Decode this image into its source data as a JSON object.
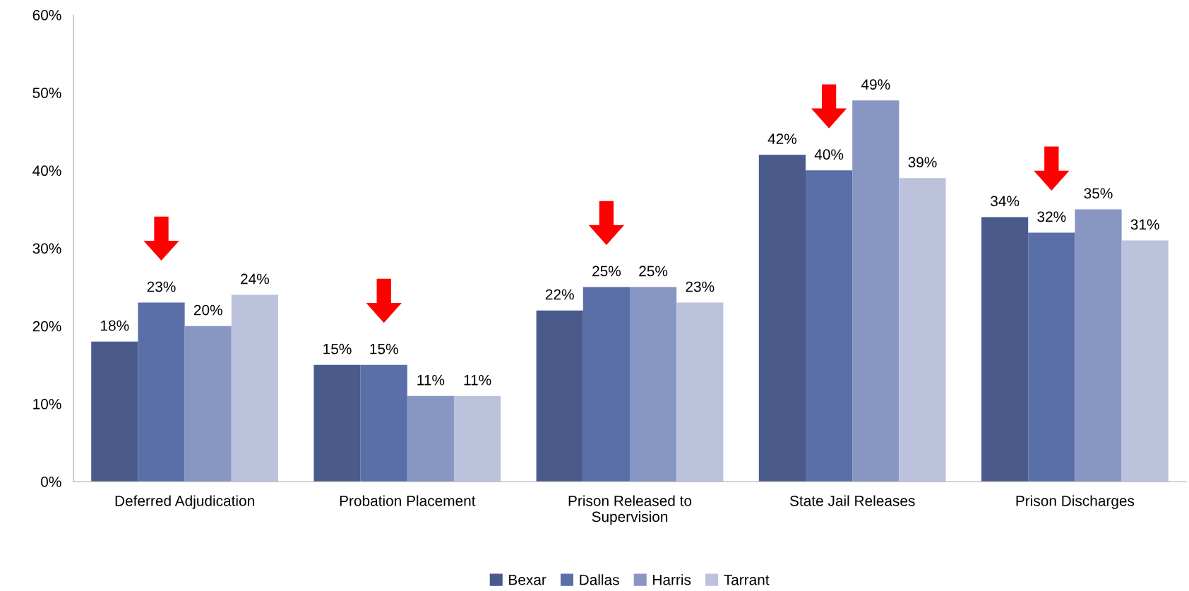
{
  "chart_data": {
    "type": "bar",
    "categories": [
      "Deferred Adjudication",
      "Probation Placement",
      "Prison Released to\nSupervision",
      "State Jail Releases",
      "Prison Discharges"
    ],
    "series": [
      {
        "name": "Bexar",
        "color": "#4a5a8a",
        "values": [
          18,
          15,
          22,
          42,
          34
        ],
        "value_labels": [
          "18%",
          "15%",
          "22%",
          "42%",
          "34%"
        ]
      },
      {
        "name": "Dallas",
        "color": "#5a6ea8",
        "values": [
          23,
          15,
          25,
          40,
          32
        ],
        "value_labels": [
          "23%",
          "15%",
          "25%",
          "40%",
          "32%"
        ]
      },
      {
        "name": "Harris",
        "color": "#8896c4",
        "values": [
          20,
          11,
          25,
          49,
          35
        ],
        "value_labels": [
          "20%",
          "11%",
          "25%",
          "49%",
          "35%"
        ]
      },
      {
        "name": "Tarrant",
        "color": "#bcc2dc",
        "values": [
          24,
          11,
          23,
          39,
          31
        ],
        "value_labels": [
          "24%",
          "11%",
          "23%",
          "39%",
          "31%"
        ]
      }
    ],
    "ylim": [
      0,
      60
    ],
    "yticks": [
      {
        "value": 0,
        "label": "0%"
      },
      {
        "value": 10,
        "label": "10%"
      },
      {
        "value": 20,
        "label": "20%"
      },
      {
        "value": 30,
        "label": "30%"
      },
      {
        "value": 40,
        "label": "40%"
      },
      {
        "value": 50,
        "label": "50%"
      },
      {
        "value": 60,
        "label": "60%"
      }
    ],
    "grid": false,
    "legend": "bottom"
  }
}
